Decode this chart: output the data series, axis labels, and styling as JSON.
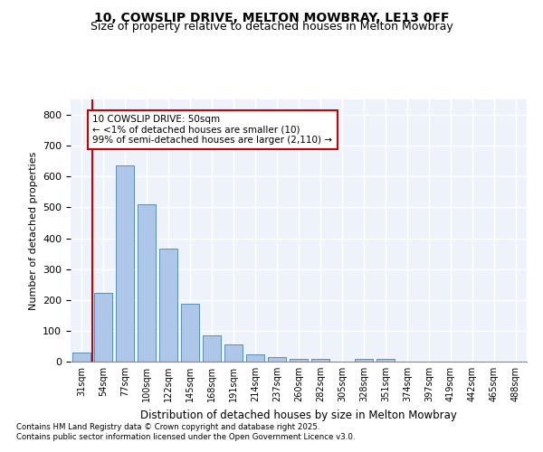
{
  "title_line1": "10, COWSLIP DRIVE, MELTON MOWBRAY, LE13 0FF",
  "title_line2": "Size of property relative to detached houses in Melton Mowbray",
  "xlabel": "Distribution of detached houses by size in Melton Mowbray",
  "ylabel": "Number of detached properties",
  "categories": [
    "31sqm",
    "54sqm",
    "77sqm",
    "100sqm",
    "122sqm",
    "145sqm",
    "168sqm",
    "191sqm",
    "214sqm",
    "237sqm",
    "260sqm",
    "282sqm",
    "305sqm",
    "328sqm",
    "351sqm",
    "374sqm",
    "397sqm",
    "419sqm",
    "442sqm",
    "465sqm",
    "488sqm"
  ],
  "values": [
    30,
    222,
    635,
    510,
    365,
    188,
    85,
    55,
    22,
    15,
    10,
    8,
    0,
    8,
    8,
    0,
    0,
    0,
    0,
    0,
    0
  ],
  "bar_color": "#aec6e8",
  "bar_edge_color": "#5b8db8",
  "highlight_color": "#cc0000",
  "annotation_text": "10 COWSLIP DRIVE: 50sqm\n← <1% of detached houses are smaller (10)\n99% of semi-detached houses are larger (2,110) →",
  "annotation_box_color": "#ffffff",
  "annotation_border_color": "#cc0000",
  "ylim": [
    0,
    850
  ],
  "yticks": [
    0,
    100,
    200,
    300,
    400,
    500,
    600,
    700,
    800
  ],
  "background_color": "#eef2fb",
  "footer_text": "Contains HM Land Registry data © Crown copyright and database right 2025.\nContains public sector information licensed under the Open Government Licence v3.0.",
  "grid_color": "#ffffff",
  "title_fontsize": 10,
  "subtitle_fontsize": 9
}
